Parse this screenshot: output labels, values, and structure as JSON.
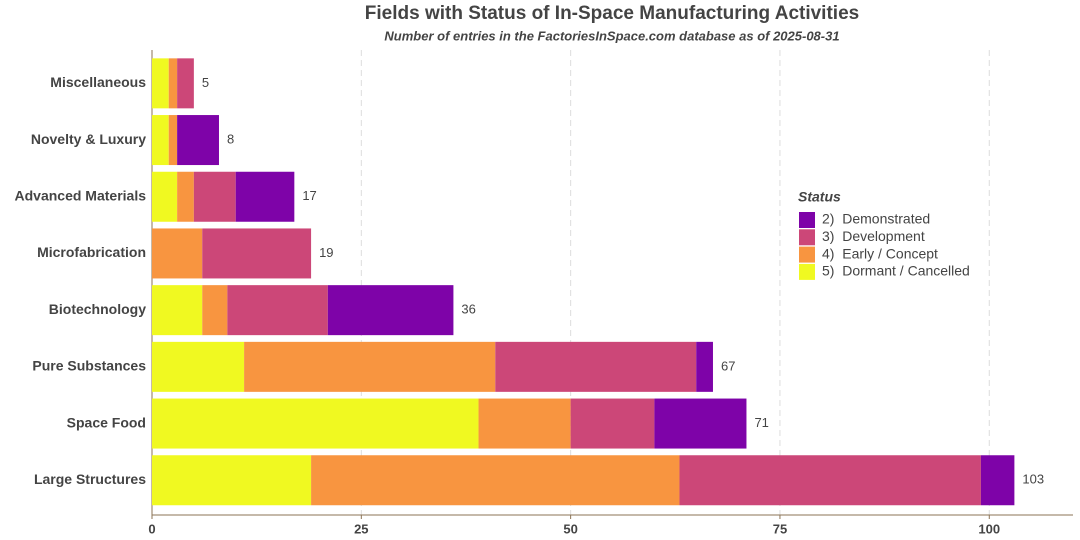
{
  "chart_data": {
    "type": "stacked-barh",
    "title": "Fields with Status of In-Space Manufacturing Activities",
    "subtitle": "Number of entries in the FactoriesInSpace.com database as of 2025-08-31",
    "categories": [
      "Miscellaneous",
      "Novelty & Luxury",
      "Advanced Materials",
      "Microfabrication",
      "Biotechnology",
      "Pure Substances",
      "Space Food",
      "Large Structures"
    ],
    "series": [
      {
        "name": "2)  Demonstrated",
        "color": "#7e03a8",
        "values": [
          0,
          5,
          7,
          0,
          15,
          2,
          11,
          4
        ]
      },
      {
        "name": "3)  Development",
        "color": "#cc4778",
        "values": [
          2,
          0,
          5,
          13,
          12,
          24,
          10,
          36
        ]
      },
      {
        "name": "4)  Early / Concept",
        "color": "#f89540",
        "values": [
          1,
          1,
          2,
          6,
          3,
          30,
          11,
          44
        ]
      },
      {
        "name": "5)  Dormant / Cancelled",
        "color": "#f0f921",
        "values": [
          2,
          2,
          3,
          0,
          6,
          11,
          39,
          19
        ]
      }
    ],
    "totals": [
      5,
      8,
      17,
      19,
      36,
      67,
      71,
      103
    ],
    "legend_title": "Status",
    "xlim": [
      0,
      110
    ],
    "xticks": [
      0,
      25,
      50,
      75,
      100
    ],
    "grid": true
  }
}
